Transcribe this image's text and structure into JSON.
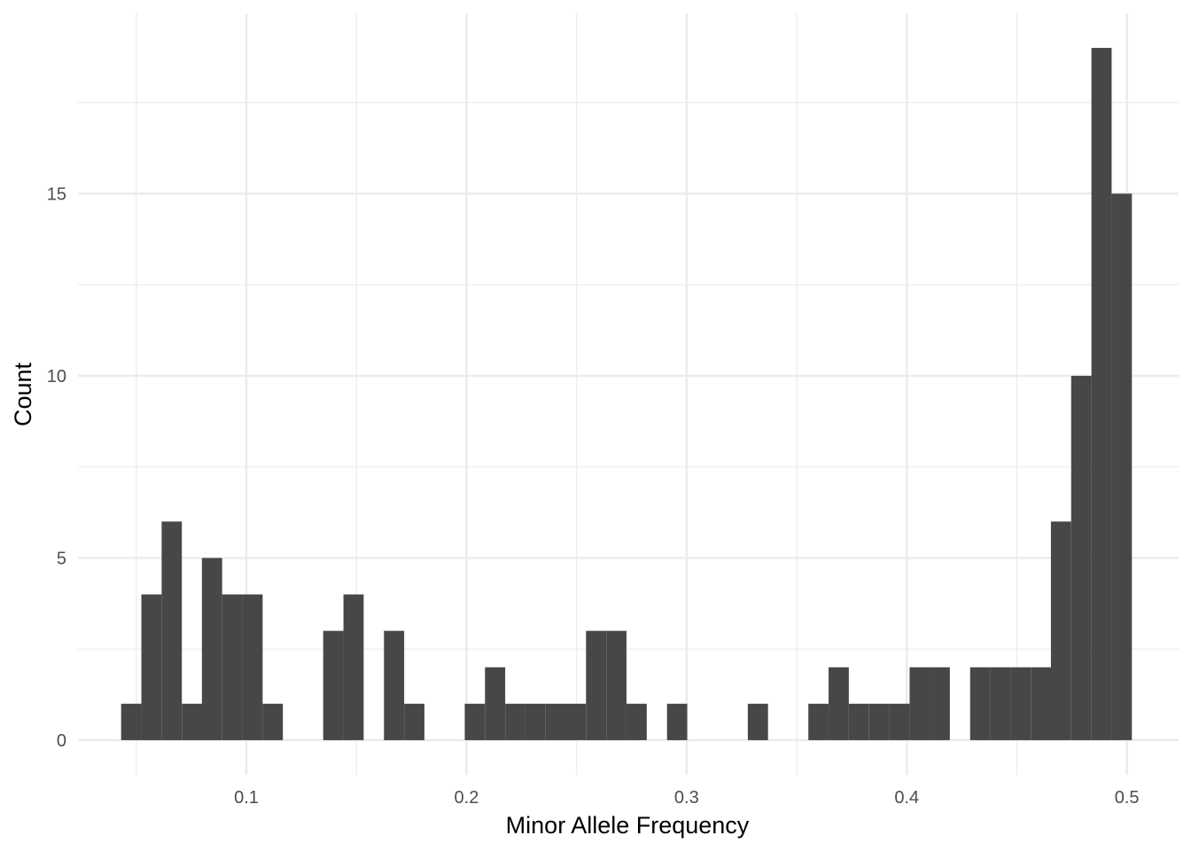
{
  "chart_data": {
    "type": "bar",
    "title": "",
    "xlabel": "Minor Allele Frequency",
    "ylabel": "Count",
    "xlim": [
      0.0235,
      0.5235
    ],
    "ylim": [
      -0.95,
      19.95
    ],
    "x_ticks": [
      0.1,
      0.2,
      0.3,
      0.4,
      0.5
    ],
    "x_tick_labels": [
      "0.1",
      "0.2",
      "0.3",
      "0.4",
      "0.5"
    ],
    "y_ticks": [
      0,
      5,
      10,
      15
    ],
    "y_tick_labels": [
      "0",
      "5",
      "10",
      "15"
    ],
    "bin_width": 0.00918,
    "bin_starts": [
      0.0431,
      0.0523,
      0.0615,
      0.0707,
      0.0798,
      0.089,
      0.0982,
      0.1074,
      0.1166,
      0.1258,
      0.1349,
      0.1441,
      0.1533,
      0.1625,
      0.1717,
      0.1809,
      0.19,
      0.1992,
      0.2084,
      0.2176,
      0.2268,
      0.236,
      0.2451,
      0.2543,
      0.2635,
      0.2727,
      0.2819,
      0.2911,
      0.3002,
      0.3094,
      0.3186,
      0.3278,
      0.337,
      0.3462,
      0.3553,
      0.3645,
      0.3737,
      0.3829,
      0.3921,
      0.4013,
      0.4104,
      0.4196,
      0.4288,
      0.438,
      0.4472,
      0.4564,
      0.4655,
      0.4747,
      0.4839,
      0.4931
    ],
    "values": [
      1,
      4,
      6,
      1,
      5,
      4,
      4,
      1,
      0,
      0,
      3,
      4,
      0,
      3,
      1,
      0,
      0,
      1,
      2,
      1,
      1,
      1,
      1,
      3,
      3,
      1,
      0,
      1,
      0,
      0,
      0,
      1,
      0,
      0,
      1,
      2,
      1,
      1,
      1,
      2,
      2,
      0,
      2,
      2,
      2,
      2,
      6,
      10,
      19,
      15
    ],
    "bar_color": "#474747",
    "grid": true,
    "grid_color": "#ebebeb",
    "legend": "none"
  }
}
